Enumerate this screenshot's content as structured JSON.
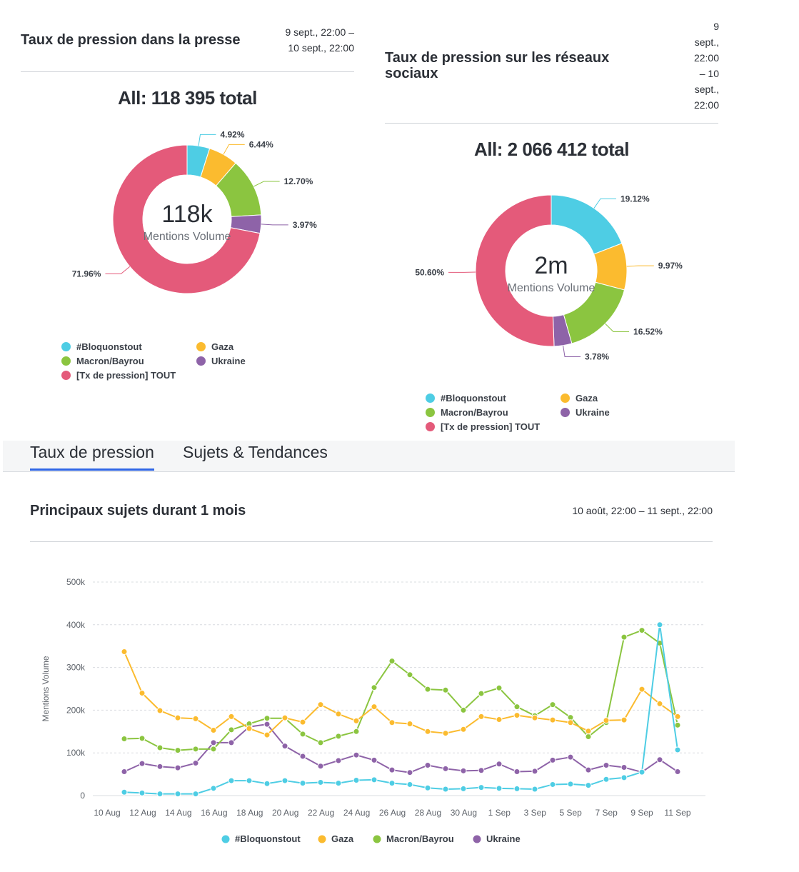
{
  "press_panel": {
    "title": "Taux de pression dans la presse",
    "date_line1": "9 sept., 22:00 –",
    "date_line2": "10 sept., 22:00",
    "total_label": "All: 118 395 total",
    "center_value": "118k",
    "center_caption": "Mentions Volume"
  },
  "social_panel": {
    "title_line1": "Taux de pression sur les réseaux",
    "title_line2": "sociaux",
    "date_lines": [
      "9",
      "sept.,",
      "22:00",
      "– 10",
      "sept.,",
      "22:00"
    ],
    "total_label": "All: 2 066 412 total",
    "center_value": "2m",
    "center_caption": "Mentions Volume"
  },
  "legend_donut": [
    "#Bloquonstout",
    "Gaza",
    "Macron/Bayrou",
    "Ukraine",
    "[Tx de pression] TOUT"
  ],
  "tabs": {
    "active": "Taux de pression",
    "other": "Sujets & Tendances"
  },
  "trend_panel": {
    "title": "Principaux sujets durant 1 mois",
    "date_range": "10 août, 22:00 – 11 sept., 22:00"
  },
  "colors": {
    "bloquonstout": "#4ecde4",
    "gaza": "#fbbb2f",
    "macron": "#8bc540",
    "ukraine": "#8e63a8",
    "tout": "#e45a7a"
  },
  "chart_data": [
    {
      "type": "pie",
      "variant": "donut",
      "title": "All: 118 395 total",
      "categories": [
        "#Bloquonstout",
        "Gaza",
        "Macron/Bayrou",
        "Ukraine",
        "[Tx de pression] TOUT"
      ],
      "values": [
        4.92,
        6.44,
        12.7,
        3.97,
        71.96
      ],
      "labels": [
        "4.92%",
        "6.44%",
        "12.70%",
        "3.97%",
        "71.96%"
      ]
    },
    {
      "type": "pie",
      "variant": "donut",
      "title": "All: 2 066 412 total",
      "categories": [
        "#Bloquonstout",
        "Gaza",
        "Macron/Bayrou",
        "Ukraine",
        "[Tx de pression] TOUT"
      ],
      "values": [
        19.12,
        9.97,
        16.52,
        3.78,
        50.6
      ],
      "labels": [
        "19.12%",
        "9.97%",
        "16.52%",
        "3.78%",
        "50.60%"
      ]
    },
    {
      "type": "line",
      "title": "Principaux sujets durant 1 mois",
      "xlabel": "",
      "ylabel": "Mentions Volume",
      "ylim": [
        0,
        500000
      ],
      "yticks": [
        0,
        100000,
        200000,
        300000,
        400000,
        500000
      ],
      "ytick_labels": [
        "0",
        "100k",
        "200k",
        "300k",
        "400k",
        "500k"
      ],
      "x_tick_labels": [
        "10 Aug",
        "12 Aug",
        "14 Aug",
        "16 Aug",
        "18 Aug",
        "20 Aug",
        "22 Aug",
        "24 Aug",
        "26 Aug",
        "28 Aug",
        "30 Aug",
        "1 Sep",
        "3 Sep",
        "5 Sep",
        "7 Sep",
        "9 Sep",
        "11 Sep"
      ],
      "x": [
        "11 Aug",
        "12 Aug",
        "13 Aug",
        "14 Aug",
        "15 Aug",
        "16 Aug",
        "17 Aug",
        "18 Aug",
        "19 Aug",
        "20 Aug",
        "21 Aug",
        "22 Aug",
        "23 Aug",
        "24 Aug",
        "25 Aug",
        "26 Aug",
        "27 Aug",
        "28 Aug",
        "29 Aug",
        "30 Aug",
        "31 Aug",
        "1 Sep",
        "2 Sep",
        "3 Sep",
        "4 Sep",
        "5 Sep",
        "6 Sep",
        "7 Sep",
        "8 Sep",
        "9 Sep",
        "10 Sep",
        "11 Sep"
      ],
      "series": [
        {
          "name": "#Bloquonstout",
          "values": [
            8000,
            6000,
            4000,
            4000,
            4000,
            17000,
            35000,
            35000,
            28000,
            35000,
            29000,
            31000,
            29000,
            36000,
            37000,
            29000,
            26000,
            18000,
            15000,
            16000,
            19000,
            17000,
            16000,
            15000,
            26000,
            27000,
            24000,
            38000,
            42000,
            55000,
            400000,
            107000
          ]
        },
        {
          "name": "Gaza",
          "values": [
            337000,
            240000,
            199000,
            182000,
            180000,
            153000,
            185000,
            157000,
            142000,
            182000,
            172000,
            213000,
            191000,
            175000,
            208000,
            171000,
            168000,
            150000,
            146000,
            155000,
            185000,
            178000,
            188000,
            182000,
            177000,
            171000,
            151000,
            176000,
            177000,
            249000,
            215000,
            185000
          ]
        },
        {
          "name": "Macron/Bayrou",
          "values": [
            133000,
            134000,
            112000,
            106000,
            109000,
            109000,
            154000,
            168000,
            181000,
            181000,
            144000,
            124000,
            139000,
            150000,
            253000,
            315000,
            283000,
            249000,
            247000,
            200000,
            239000,
            252000,
            208000,
            187000,
            213000,
            183000,
            138000,
            171000,
            371000,
            387000,
            357000,
            165000
          ]
        },
        {
          "name": "Ukraine",
          "values": [
            56000,
            75000,
            68000,
            65000,
            76000,
            124000,
            124000,
            161000,
            167000,
            116000,
            92000,
            69000,
            82000,
            95000,
            83000,
            60000,
            54000,
            71000,
            63000,
            58000,
            59000,
            74000,
            56000,
            57000,
            83000,
            90000,
            60000,
            71000,
            66000,
            55000,
            84000,
            56000
          ]
        }
      ],
      "legend": "bottom"
    }
  ]
}
